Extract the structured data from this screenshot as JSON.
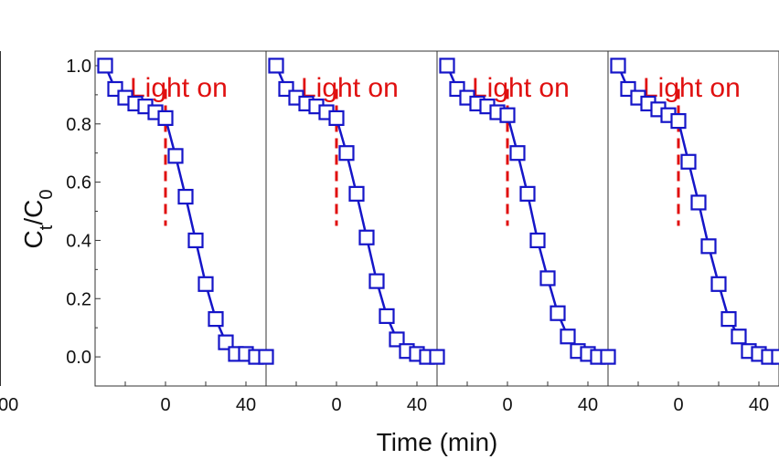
{
  "chart_data": {
    "type": "line",
    "xlabel": "Time (min)",
    "ylabel_main": "C",
    "ylabel_sub_1": "t",
    "ylabel_slash": "/C",
    "ylabel_sub_2": "0",
    "ylim": [
      -0.1,
      1.05
    ],
    "xlim": [
      -35,
      50
    ],
    "y_ticks": [
      "0.0",
      "0.2",
      "0.4",
      "0.6",
      "0.8",
      "1.0"
    ],
    "y_tick_values": [
      0.0,
      0.2,
      0.4,
      0.6,
      0.8,
      1.0
    ],
    "x_ticks": [
      "0",
      "40"
    ],
    "x_tick_values": [
      0,
      40
    ],
    "left_partial_tick": "00",
    "annotation_text": "Light on",
    "annotation_x": 0,
    "annotation_y_range": [
      0.45,
      0.92
    ],
    "colors": {
      "series": "#1515c8",
      "annotation": "#e01010",
      "axis": "#333333"
    },
    "panels": [
      {
        "x": [
          -30,
          -25,
          -20,
          -15,
          -10,
          -5,
          0,
          5,
          10,
          15,
          20,
          25,
          30,
          35,
          40,
          45,
          50
        ],
        "y": [
          1.0,
          0.92,
          0.89,
          0.87,
          0.86,
          0.84,
          0.82,
          0.69,
          0.55,
          0.4,
          0.25,
          0.13,
          0.05,
          0.01,
          0.01,
          0.0,
          0.0
        ]
      },
      {
        "x": [
          -30,
          -25,
          -20,
          -15,
          -10,
          -5,
          0,
          5,
          10,
          15,
          20,
          25,
          30,
          35,
          40,
          45,
          50
        ],
        "y": [
          1.0,
          0.92,
          0.89,
          0.87,
          0.86,
          0.84,
          0.82,
          0.7,
          0.56,
          0.41,
          0.26,
          0.14,
          0.06,
          0.02,
          0.01,
          0.0,
          0.0
        ]
      },
      {
        "x": [
          -30,
          -25,
          -20,
          -15,
          -10,
          -5,
          0,
          5,
          10,
          15,
          20,
          25,
          30,
          35,
          40,
          45,
          50
        ],
        "y": [
          1.0,
          0.92,
          0.89,
          0.87,
          0.86,
          0.84,
          0.83,
          0.7,
          0.56,
          0.4,
          0.27,
          0.15,
          0.07,
          0.02,
          0.01,
          0.0,
          0.0
        ]
      },
      {
        "x": [
          -30,
          -25,
          -20,
          -15,
          -10,
          -5,
          0,
          5,
          10,
          15,
          20,
          25,
          30,
          35,
          40,
          45,
          50
        ],
        "y": [
          1.0,
          0.92,
          0.89,
          0.87,
          0.85,
          0.83,
          0.81,
          0.67,
          0.53,
          0.38,
          0.25,
          0.13,
          0.07,
          0.02,
          0.01,
          0.0,
          0.0
        ]
      }
    ]
  }
}
